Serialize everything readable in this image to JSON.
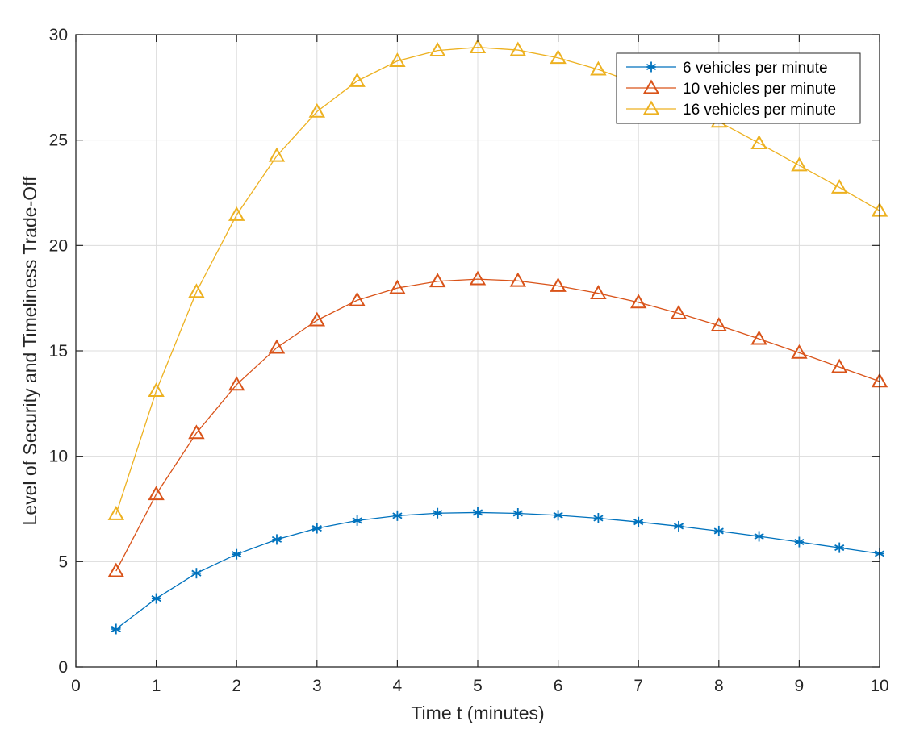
{
  "chart_data": {
    "type": "line",
    "title": "",
    "xlabel": "Time t (minutes)",
    "ylabel": "Level of Security and Timeliness Trade-Off",
    "xlim": [
      0,
      10
    ],
    "ylim": [
      0,
      30
    ],
    "xticks": [
      "0",
      "1",
      "2",
      "3",
      "4",
      "5",
      "6",
      "7",
      "8",
      "9",
      "10"
    ],
    "yticks": [
      "0",
      "5",
      "10",
      "15",
      "20",
      "25",
      "30"
    ],
    "grid": true,
    "legend_position": "top-right",
    "x": [
      0.5,
      1,
      1.5,
      2,
      2.5,
      3,
      3.5,
      4,
      4.5,
      5,
      5.5,
      6,
      6.5,
      7,
      7.5,
      8,
      8.5,
      9,
      9.5,
      10
    ],
    "series": [
      {
        "name": "6 vehicles per minute",
        "color": "#0072BD",
        "marker": "asterisk",
        "values": [
          1.8,
          3.25,
          4.45,
          5.35,
          6.05,
          6.58,
          6.95,
          7.18,
          7.3,
          7.33,
          7.29,
          7.2,
          7.06,
          6.88,
          6.68,
          6.45,
          6.2,
          5.93,
          5.66,
          5.38
        ]
      },
      {
        "name": "10 vehicles per minute",
        "color": "#D95319",
        "marker": "triangle",
        "values": [
          4.55,
          8.2,
          11.1,
          13.4,
          15.15,
          16.45,
          17.4,
          17.98,
          18.3,
          18.4,
          18.32,
          18.08,
          17.73,
          17.3,
          16.78,
          16.2,
          15.57,
          14.91,
          14.23,
          13.55
        ]
      },
      {
        "name": "16 vehicles per minute",
        "color": "#EDB120",
        "marker": "triangle",
        "values": [
          7.25,
          13.1,
          17.8,
          21.45,
          24.25,
          26.35,
          27.8,
          28.75,
          29.25,
          29.4,
          29.27,
          28.9,
          28.35,
          27.65,
          26.82,
          25.87,
          24.85,
          23.8,
          22.75,
          21.65
        ]
      }
    ]
  }
}
